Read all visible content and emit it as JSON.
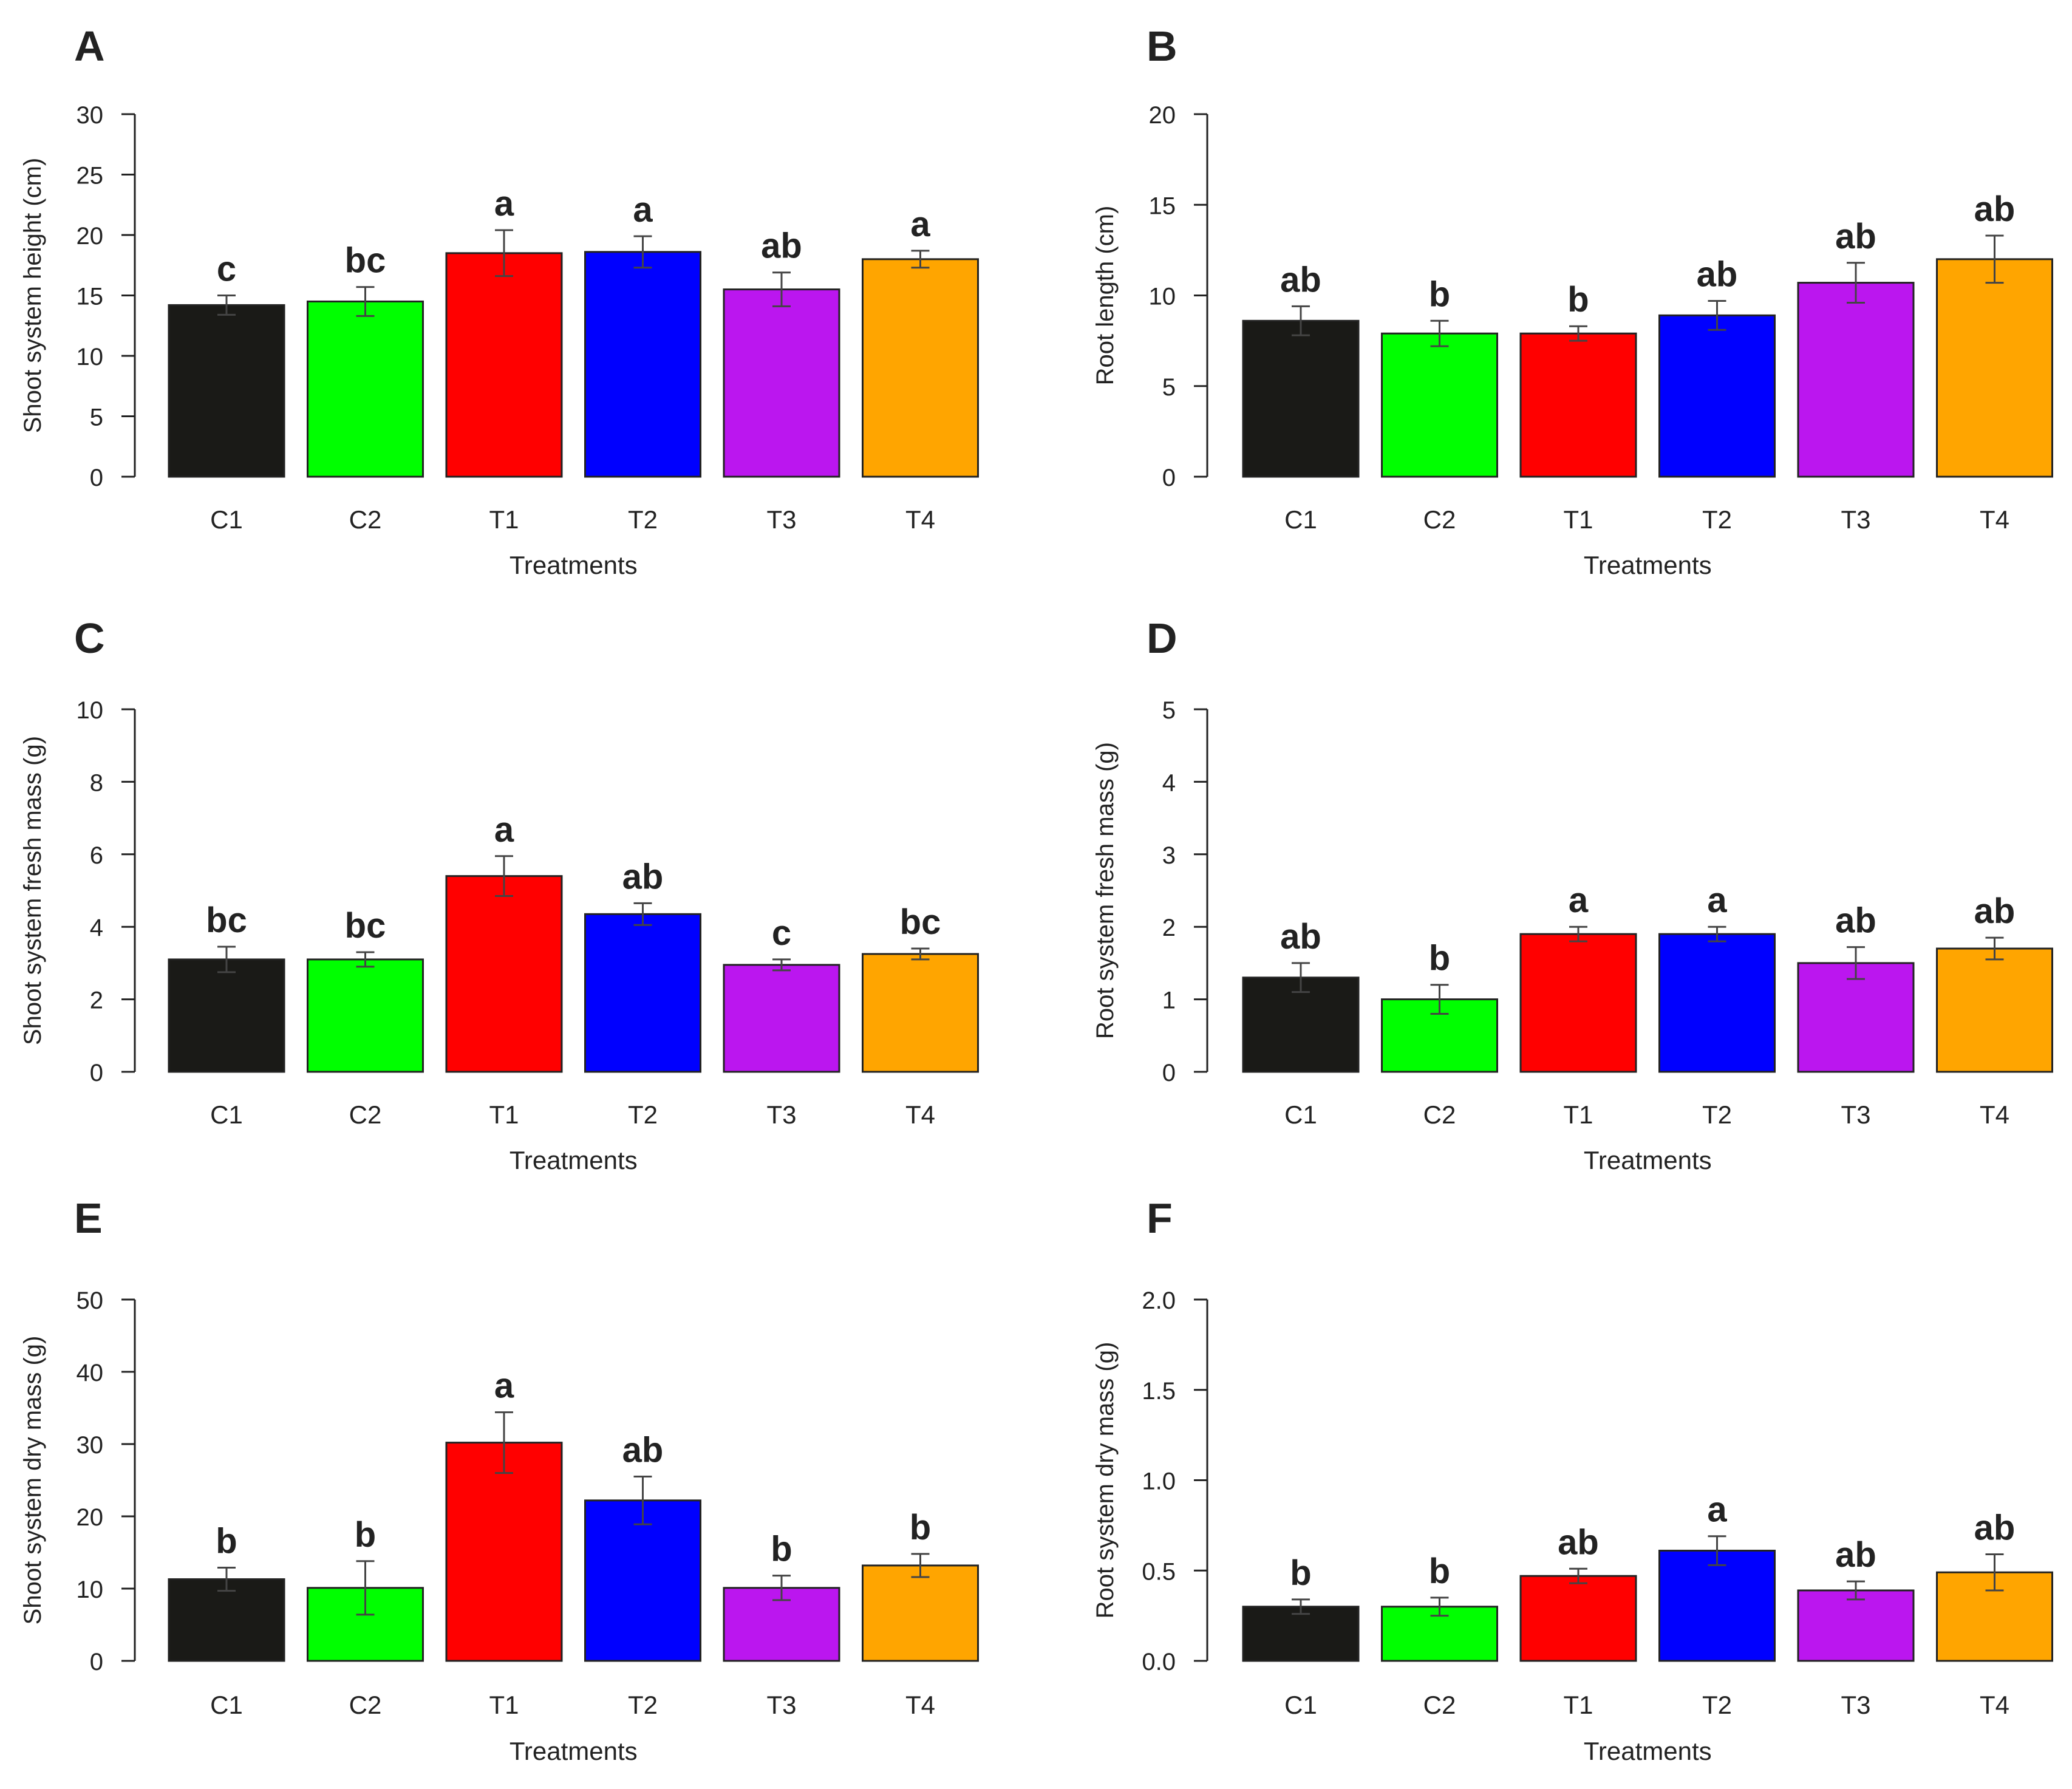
{
  "chart_data": [
    {
      "panel_label": "A",
      "type": "bar",
      "categories": [
        "C1",
        "C2",
        "T1",
        "T2",
        "T3",
        "T4"
      ],
      "values": [
        14.2,
        14.5,
        18.5,
        18.6,
        15.5,
        18.0
      ],
      "errors": [
        0.8,
        1.2,
        1.9,
        1.3,
        1.4,
        0.7
      ],
      "letters": [
        "c",
        "bc",
        "a",
        "a",
        "ab",
        "a"
      ],
      "colors": [
        "#1a1a17",
        "#00ff00",
        "#ff0000",
        "#0000ff",
        "#bb16ef",
        "#ffa500"
      ],
      "xlabel": "Treatments",
      "ylabel": "Shoot system height (cm)",
      "ylim": [
        0,
        30
      ],
      "yticks": [
        0,
        5,
        10,
        15,
        20,
        25,
        30
      ],
      "ytick_labels": [
        "0",
        "5",
        "10",
        "15",
        "20",
        "25",
        "30"
      ]
    },
    {
      "panel_label": "B",
      "type": "bar",
      "categories": [
        "C1",
        "C2",
        "T1",
        "T2",
        "T3",
        "T4"
      ],
      "values": [
        8.6,
        7.9,
        7.9,
        8.9,
        10.7,
        12.0
      ],
      "errors": [
        0.8,
        0.7,
        0.4,
        0.8,
        1.1,
        1.3
      ],
      "letters": [
        "ab",
        "b",
        "b",
        "ab",
        "ab",
        "ab"
      ],
      "colors": [
        "#1a1a17",
        "#00ff00",
        "#ff0000",
        "#0000ff",
        "#bb16ef",
        "#ffa500"
      ],
      "xlabel": "Treatments",
      "ylabel": "Root length (cm)",
      "ylim": [
        0,
        20
      ],
      "yticks": [
        0,
        5,
        10,
        15,
        20
      ],
      "ytick_labels": [
        "0",
        "5",
        "10",
        "15",
        "20"
      ]
    },
    {
      "panel_label": "C",
      "type": "bar",
      "categories": [
        "C1",
        "C2",
        "T1",
        "T2",
        "T3",
        "T4"
      ],
      "values": [
        3.1,
        3.1,
        5.4,
        4.35,
        2.95,
        3.25
      ],
      "errors": [
        0.35,
        0.2,
        0.55,
        0.3,
        0.15,
        0.15
      ],
      "letters": [
        "bc",
        "bc",
        "a",
        "ab",
        "c",
        "bc"
      ],
      "colors": [
        "#1a1a17",
        "#00ff00",
        "#ff0000",
        "#0000ff",
        "#bb16ef",
        "#ffa500"
      ],
      "xlabel": "Treatments",
      "ylabel": "Shoot system fresh mass (g)",
      "ylim": [
        0,
        10
      ],
      "yticks": [
        0,
        2,
        4,
        6,
        8,
        10
      ],
      "ytick_labels": [
        "0",
        "2",
        "4",
        "6",
        "8",
        "10"
      ]
    },
    {
      "panel_label": "D",
      "type": "bar",
      "categories": [
        "C1",
        "C2",
        "T1",
        "T2",
        "T3",
        "T4"
      ],
      "values": [
        1.3,
        1.0,
        1.9,
        1.9,
        1.5,
        1.7
      ],
      "errors": [
        0.2,
        0.2,
        0.1,
        0.1,
        0.22,
        0.15
      ],
      "letters": [
        "ab",
        "b",
        "a",
        "a",
        "ab",
        "ab"
      ],
      "colors": [
        "#1a1a17",
        "#00ff00",
        "#ff0000",
        "#0000ff",
        "#bb16ef",
        "#ffa500"
      ],
      "xlabel": "Treatments",
      "ylabel": "Root system fresh mass (g)",
      "ylim": [
        0,
        5
      ],
      "yticks": [
        0,
        1,
        2,
        3,
        4,
        5
      ],
      "ytick_labels": [
        "0",
        "1",
        "2",
        "3",
        "4",
        "5"
      ]
    },
    {
      "panel_label": "E",
      "type": "bar",
      "categories": [
        "C1",
        "C2",
        "T1",
        "T2",
        "T3",
        "T4"
      ],
      "values": [
        11.3,
        10.1,
        30.2,
        22.2,
        10.1,
        13.2
      ],
      "errors": [
        1.6,
        3.7,
        4.2,
        3.3,
        1.7,
        1.6
      ],
      "letters": [
        "b",
        "b",
        "a",
        "ab",
        "b",
        "b"
      ],
      "colors": [
        "#1a1a17",
        "#00ff00",
        "#ff0000",
        "#0000ff",
        "#bb16ef",
        "#ffa500"
      ],
      "xlabel": "Treatments",
      "ylabel": "Shoot system dry mass (g)",
      "ylim": [
        0,
        50
      ],
      "yticks": [
        0,
        10,
        20,
        30,
        40,
        50
      ],
      "ytick_labels": [
        "0",
        "10",
        "20",
        "30",
        "40",
        "50"
      ]
    },
    {
      "panel_label": "F",
      "type": "bar",
      "categories": [
        "C1",
        "C2",
        "T1",
        "T2",
        "T3",
        "T4"
      ],
      "values": [
        0.3,
        0.3,
        0.47,
        0.61,
        0.39,
        0.49
      ],
      "errors": [
        0.04,
        0.05,
        0.04,
        0.08,
        0.05,
        0.1
      ],
      "letters": [
        "b",
        "b",
        "ab",
        "a",
        "ab",
        "ab"
      ],
      "colors": [
        "#1a1a17",
        "#00ff00",
        "#ff0000",
        "#0000ff",
        "#bb16ef",
        "#ffa500"
      ],
      "xlabel": "Treatments",
      "ylabel": "Root system dry mass (g)",
      "ylim": [
        0,
        2
      ],
      "yticks": [
        0,
        0.5,
        1.0,
        1.5,
        2.0
      ],
      "ytick_labels": [
        "0.0",
        "0.5",
        "1.0",
        "1.5",
        "2.0"
      ]
    }
  ]
}
